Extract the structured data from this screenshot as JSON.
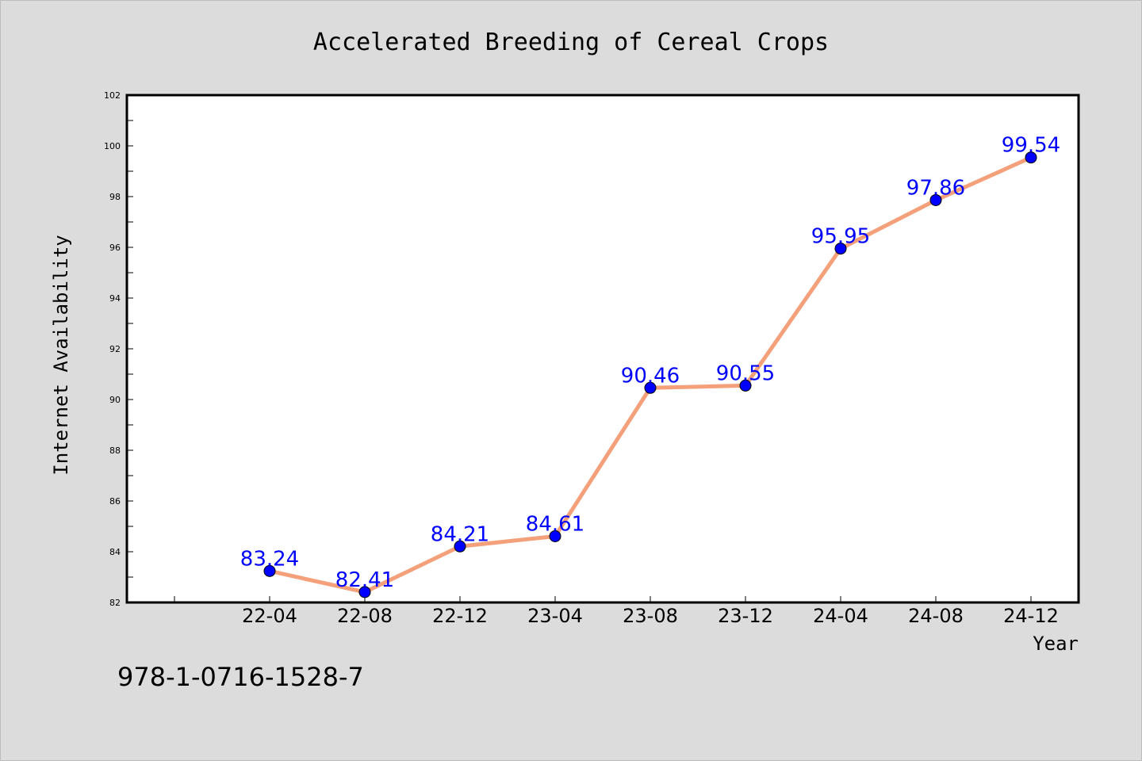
{
  "chart_data": {
    "type": "line",
    "title": "Accelerated Breeding of Cereal Crops",
    "xlabel": "Year",
    "ylabel": "Internet Availability",
    "categories": [
      "22-04",
      "22-08",
      "22-12",
      "23-04",
      "23-08",
      "23-12",
      "24-04",
      "24-08",
      "24-12"
    ],
    "values": [
      83.24,
      82.41,
      84.21,
      84.61,
      90.46,
      90.55,
      95.95,
      97.86,
      99.54
    ],
    "value_labels": [
      "83.24",
      "82.41",
      "84.21",
      "84.61",
      "90.46",
      "90.55",
      "95.95",
      "97.86",
      "99.54"
    ],
    "ylim": [
      82,
      102
    ],
    "yticks": [
      "82",
      "84",
      "86",
      "88",
      "90",
      "92",
      "94",
      "96",
      "98",
      "100",
      "102"
    ],
    "grid": false,
    "legend": "none",
    "colors": {
      "line": "#f4a07a",
      "marker": "#0000ff",
      "data_label": "#0000ff",
      "background": "#dcdcdc",
      "plot_background": "#ffffff"
    }
  },
  "footer_text": "978-1-0716-1528-7"
}
